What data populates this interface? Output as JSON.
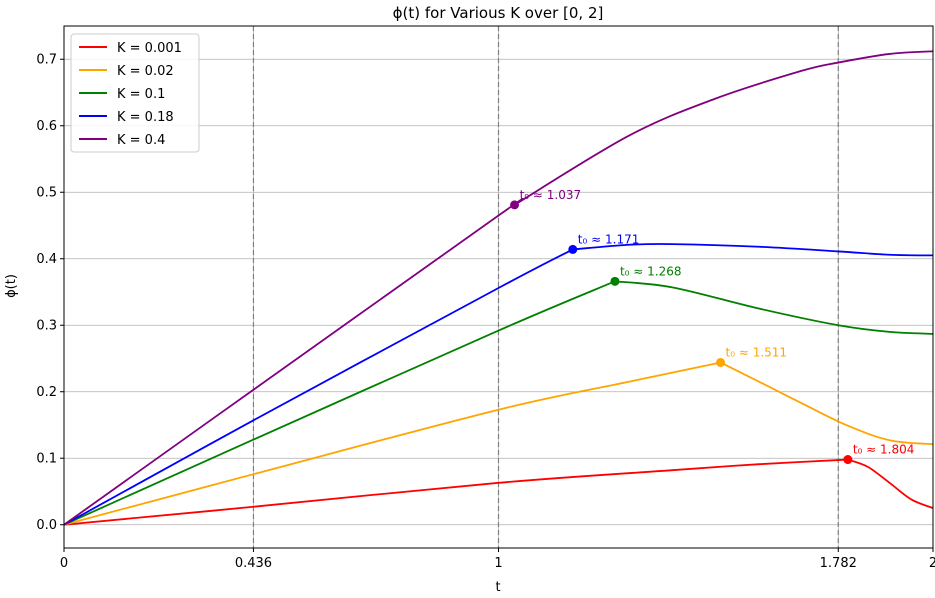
{
  "chart_data": {
    "type": "line",
    "title": "ϕ(t) for Various K over [0, 2]",
    "xlabel": "t",
    "ylabel": "ϕ(t)",
    "xlim": [
      0,
      2
    ],
    "ylim": [
      -0.035,
      0.75
    ],
    "x_ticks": [
      {
        "value": 0,
        "label": "0"
      },
      {
        "value": 0.436,
        "label": "0.436"
      },
      {
        "value": 1,
        "label": "1"
      },
      {
        "value": 1.782,
        "label": "1.782"
      },
      {
        "value": 2,
        "label": "2"
      }
    ],
    "y_ticks": [
      {
        "value": 0.0,
        "label": "0.0"
      },
      {
        "value": 0.1,
        "label": "0.1"
      },
      {
        "value": 0.2,
        "label": "0.2"
      },
      {
        "value": 0.3,
        "label": "0.3"
      },
      {
        "value": 0.4,
        "label": "0.4"
      },
      {
        "value": 0.5,
        "label": "0.5"
      },
      {
        "value": 0.6,
        "label": "0.6"
      },
      {
        "value": 0.7,
        "label": "0.7"
      }
    ],
    "vlines": [
      0.436,
      1,
      1.782
    ],
    "grid": true,
    "legend_position": "top-left",
    "series": [
      {
        "name": "K = 0.001",
        "color": "#ff0000",
        "x": [
          0,
          0.436,
          1.0,
          1.4,
          1.6,
          1.804,
          1.85,
          1.9,
          1.95,
          2.0
        ],
        "y": [
          0,
          0.027,
          0.063,
          0.082,
          0.091,
          0.098,
          0.087,
          0.063,
          0.038,
          0.025
        ],
        "marker": {
          "x": 1.804,
          "y": 0.098,
          "label": "t₀ ≈ 1.804"
        }
      },
      {
        "name": "K = 0.02",
        "color": "#ffa500",
        "x": [
          0,
          0.436,
          1.0,
          1.3,
          1.511,
          1.6,
          1.7,
          1.8,
          1.9,
          2.0
        ],
        "y": [
          0,
          0.076,
          0.173,
          0.215,
          0.244,
          0.215,
          0.182,
          0.15,
          0.127,
          0.121
        ],
        "marker": {
          "x": 1.511,
          "y": 0.244,
          "label": "t₀ ≈ 1.511"
        }
      },
      {
        "name": "K = 0.1",
        "color": "#008000",
        "x": [
          0,
          0.436,
          1.0,
          1.268,
          1.4,
          1.6,
          1.782,
          1.9,
          2.0
        ],
        "y": [
          0,
          0.128,
          0.292,
          0.366,
          0.357,
          0.325,
          0.3,
          0.29,
          0.287
        ],
        "marker": {
          "x": 1.268,
          "y": 0.366,
          "label": "t₀ ≈ 1.268"
        }
      },
      {
        "name": "K = 0.18",
        "color": "#0000ff",
        "x": [
          0,
          0.436,
          1.0,
          1.171,
          1.3,
          1.4,
          1.6,
          1.782,
          1.9,
          2.0
        ],
        "y": [
          0,
          0.157,
          0.356,
          0.414,
          0.421,
          0.422,
          0.418,
          0.411,
          0.406,
          0.405
        ],
        "marker": {
          "x": 1.171,
          "y": 0.414,
          "label": "t₀ ≈ 1.171"
        }
      },
      {
        "name": "K = 0.4",
        "color": "#800080",
        "x": [
          0,
          0.436,
          1.0,
          1.037,
          1.3,
          1.5,
          1.7,
          1.782,
          1.9,
          2.0
        ],
        "y": [
          0,
          0.203,
          0.465,
          0.481,
          0.585,
          0.641,
          0.683,
          0.695,
          0.708,
          0.712
        ],
        "marker": {
          "x": 1.037,
          "y": 0.481,
          "label": "t₀ ≈ 1.037"
        }
      }
    ]
  }
}
